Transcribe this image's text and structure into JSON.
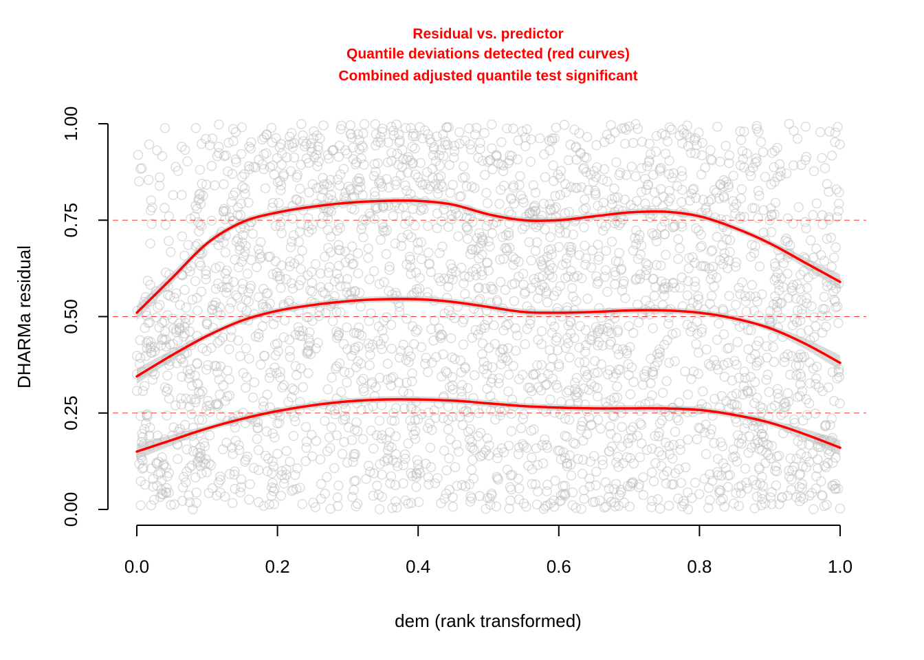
{
  "chart_data": {
    "type": "scatter",
    "title_lines": [
      "Residual vs. predictor",
      "Quantile deviations detected (red curves)",
      "Combined adjusted quantile test significant"
    ],
    "title_color": "#ff0000",
    "xlabel": "dem (rank transformed)",
    "ylabel": "DHARMa residual",
    "xlim": [
      0.0,
      1.0
    ],
    "ylim": [
      0.0,
      1.0
    ],
    "xticks": [
      "0.0",
      "0.2",
      "0.4",
      "0.6",
      "0.8",
      "1.0"
    ],
    "yticks": [
      "0.00",
      "0.25",
      "0.50",
      "0.75",
      "1.00"
    ],
    "grid": false,
    "reference_lines": [
      0.25,
      0.5,
      0.75
    ],
    "reference_color": "#ff0000",
    "points_description_count": 3000,
    "point_color": "#bdbdbd",
    "series": [
      {
        "quantile": 0.75,
        "color": "#ff0000",
        "x": [
          0.0,
          0.05,
          0.1,
          0.15,
          0.2,
          0.25,
          0.3,
          0.35,
          0.4,
          0.45,
          0.5,
          0.55,
          0.6,
          0.65,
          0.7,
          0.75,
          0.8,
          0.85,
          0.9,
          0.95,
          1.0
        ],
        "y": [
          0.51,
          0.6,
          0.69,
          0.745,
          0.77,
          0.785,
          0.795,
          0.8,
          0.8,
          0.79,
          0.765,
          0.75,
          0.75,
          0.76,
          0.77,
          0.772,
          0.76,
          0.73,
          0.69,
          0.64,
          0.59
        ]
      },
      {
        "quantile": 0.5,
        "color": "#ff0000",
        "x": [
          0.0,
          0.05,
          0.1,
          0.15,
          0.2,
          0.25,
          0.3,
          0.35,
          0.4,
          0.45,
          0.5,
          0.55,
          0.6,
          0.65,
          0.7,
          0.75,
          0.8,
          0.85,
          0.9,
          0.95,
          1.0
        ],
        "y": [
          0.345,
          0.4,
          0.45,
          0.49,
          0.515,
          0.53,
          0.54,
          0.545,
          0.545,
          0.538,
          0.525,
          0.512,
          0.51,
          0.512,
          0.516,
          0.516,
          0.51,
          0.495,
          0.47,
          0.43,
          0.38
        ]
      },
      {
        "quantile": 0.25,
        "color": "#ff0000",
        "x": [
          0.0,
          0.05,
          0.1,
          0.15,
          0.2,
          0.25,
          0.3,
          0.35,
          0.4,
          0.45,
          0.5,
          0.55,
          0.6,
          0.65,
          0.7,
          0.75,
          0.8,
          0.85,
          0.9,
          0.95,
          1.0
        ],
        "y": [
          0.15,
          0.18,
          0.21,
          0.235,
          0.255,
          0.27,
          0.28,
          0.285,
          0.285,
          0.282,
          0.275,
          0.268,
          0.264,
          0.262,
          0.262,
          0.262,
          0.258,
          0.245,
          0.225,
          0.195,
          0.16
        ]
      }
    ]
  }
}
